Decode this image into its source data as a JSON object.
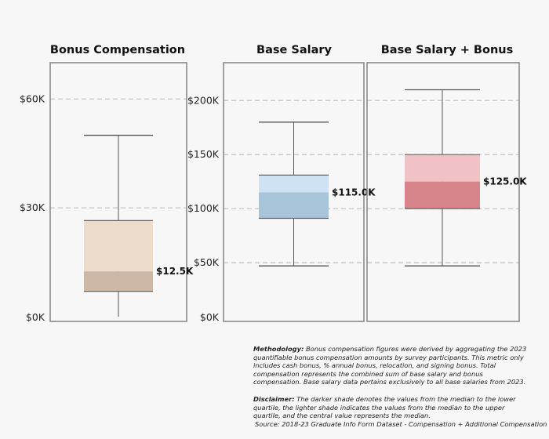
{
  "chart_data": [
    {
      "type": "box",
      "title": "Bonus Compensation",
      "ylim": [
        0,
        70000
      ],
      "yticks": [
        0,
        30000,
        60000
      ],
      "ytick_labels": [
        "$0K",
        "$30K",
        "$60K"
      ],
      "grid": true,
      "box": {
        "whisker_low": 0,
        "q1": 7000,
        "median": 12500,
        "q3": 26500,
        "whisker_high": 50000
      },
      "median_label": "$12.5K",
      "colors": {
        "upper": "#ecdccb",
        "lower": "#cdb8a8"
      }
    },
    {
      "type": "box",
      "title": "Base Salary",
      "ylim": [
        0,
        235000
      ],
      "yticks": [
        0,
        50000,
        100000,
        150000,
        200000
      ],
      "ytick_labels": [
        "$0K",
        "$50K",
        "$100K",
        "$150K",
        "$200K"
      ],
      "grid": true,
      "box": {
        "whisker_low": 47000,
        "q1": 91000,
        "median": 115000,
        "q3": 131000,
        "whisker_high": 180000
      },
      "median_label": "$115.0K",
      "colors": {
        "upper": "#cfe2f3",
        "lower": "#a7c4d8"
      }
    },
    {
      "type": "box",
      "title": "Base Salary + Bonus",
      "ylim": [
        0,
        235000
      ],
      "yticks": [
        0,
        50000,
        100000,
        150000,
        200000
      ],
      "ytick_labels": [],
      "grid": true,
      "box": {
        "whisker_low": 47000,
        "q1": 100000,
        "median": 125000,
        "q3": 150000,
        "whisker_high": 210000
      },
      "median_label": "$125.0K",
      "colors": {
        "upper": "#f0c2c6",
        "lower": "#d7858b"
      }
    }
  ],
  "notes": {
    "methodology_label": "Methodology:",
    "methodology_text": "Bonus compensation figures were derived by aggregating the 2023 quantifiable bonus compensation amounts by survey participants. This metric only includes cash bonus, % annual bonus, relocation, and signing bonus. Total compensation represents the combined sum of base salary and bonus compensation. Base salary data pertains exclusively to all base salaries from 2023.",
    "disclaimer_label": "Disclaimer:",
    "disclaimer_text": "The darker shade denotes the values from the median to the lower quartile, the lighter shade indicates the values from the median to the upper quartile, and the central value represents the median.",
    "source": "Source: 2018-23 Graduate Info Form Dataset - Compensation + Additional Compensation"
  }
}
